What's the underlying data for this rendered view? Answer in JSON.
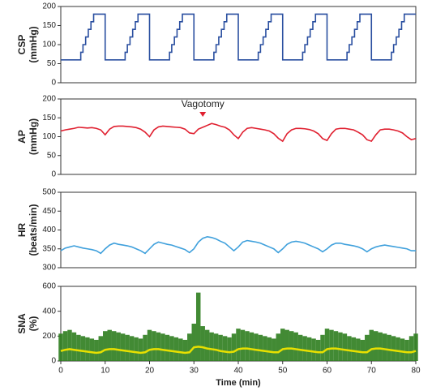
{
  "chart_data": [
    {
      "type": "line",
      "ylabel": [
        "CSP",
        "(mmHg)"
      ],
      "xlim": [
        0,
        80
      ],
      "ylim": [
        0,
        200
      ],
      "yticks": [
        0,
        50,
        100,
        150,
        200
      ],
      "x": [
        0,
        4.5,
        4.5,
        5,
        5,
        5.6,
        5.6,
        6.2,
        6.2,
        6.8,
        6.8,
        7.4,
        7.4,
        10,
        10,
        14.5,
        14.5,
        15,
        15,
        15.6,
        15.6,
        16.2,
        16.2,
        16.8,
        16.8,
        17.4,
        17.4,
        20,
        20,
        24.5,
        24.5,
        25,
        25,
        25.6,
        25.6,
        26.2,
        26.2,
        26.8,
        26.8,
        27.4,
        27.4,
        30,
        30,
        34.5,
        34.5,
        35,
        35,
        35.6,
        35.6,
        36.2,
        36.2,
        36.8,
        36.8,
        37.4,
        37.4,
        40,
        40,
        44.5,
        44.5,
        45,
        45,
        45.6,
        45.6,
        46.2,
        46.2,
        46.8,
        46.8,
        47.4,
        47.4,
        50,
        50,
        54.5,
        54.5,
        55,
        55,
        55.6,
        55.6,
        56.2,
        56.2,
        56.8,
        56.8,
        57.4,
        57.4,
        60,
        60,
        64.5,
        64.5,
        65,
        65,
        65.6,
        65.6,
        66.2,
        66.2,
        66.8,
        66.8,
        67.4,
        67.4,
        70,
        70,
        74.5,
        74.5,
        75,
        75,
        75.6,
        75.6,
        76.2,
        76.2,
        76.8,
        76.8,
        77.4,
        77.4,
        80
      ],
      "series": [
        {
          "color": "#2a4fa0",
          "values": [
            60,
            60,
            80,
            80,
            100,
            100,
            120,
            120,
            140,
            140,
            160,
            160,
            180,
            180,
            60,
            60,
            80,
            80,
            100,
            100,
            120,
            120,
            140,
            140,
            160,
            160,
            180,
            180,
            60,
            60,
            80,
            80,
            100,
            100,
            120,
            120,
            140,
            140,
            160,
            160,
            180,
            180,
            60,
            60,
            80,
            80,
            100,
            100,
            120,
            120,
            140,
            140,
            160,
            160,
            180,
            180,
            60,
            60,
            80,
            80,
            100,
            100,
            120,
            120,
            140,
            140,
            160,
            160,
            180,
            180,
            60,
            60,
            80,
            80,
            100,
            100,
            120,
            120,
            140,
            140,
            160,
            160,
            180,
            180,
            60,
            60,
            80,
            80,
            100,
            100,
            120,
            120,
            140,
            140,
            160,
            160,
            180,
            180,
            60,
            60,
            80,
            80,
            100,
            100,
            120,
            120,
            140,
            140,
            160,
            160,
            180,
            180
          ]
        }
      ]
    },
    {
      "type": "line",
      "ylabel": [
        "AP",
        "(mmHg)"
      ],
      "xlim": [
        0,
        80
      ],
      "ylim": [
        0,
        200
      ],
      "yticks": [
        0,
        50,
        100,
        150,
        200
      ],
      "annotation": {
        "text": "Vagotomy",
        "x": 32,
        "color": "#e02030"
      },
      "x": [
        0,
        1,
        2,
        3,
        4,
        5,
        6,
        7,
        8,
        9,
        10,
        11,
        12,
        13,
        14,
        15,
        16,
        17,
        18,
        19,
        20,
        21,
        22,
        23,
        24,
        25,
        26,
        27,
        28,
        29,
        30,
        31,
        32,
        33,
        34,
        35,
        36,
        37,
        38,
        39,
        40,
        41,
        42,
        43,
        44,
        45,
        46,
        47,
        48,
        49,
        50,
        51,
        52,
        53,
        54,
        55,
        56,
        57,
        58,
        59,
        60,
        61,
        62,
        63,
        64,
        65,
        66,
        67,
        68,
        69,
        70,
        71,
        72,
        73,
        74,
        75,
        76,
        77,
        78,
        79,
        80
      ],
      "series": [
        {
          "color": "#e02030",
          "values": [
            115,
            118,
            120,
            122,
            125,
            124,
            123,
            124,
            122,
            118,
            105,
            120,
            127,
            128,
            128,
            127,
            126,
            124,
            120,
            112,
            100,
            118,
            126,
            128,
            127,
            126,
            125,
            124,
            120,
            110,
            108,
            120,
            125,
            130,
            135,
            132,
            128,
            125,
            118,
            105,
            95,
            112,
            122,
            124,
            122,
            120,
            118,
            115,
            108,
            96,
            88,
            108,
            118,
            122,
            122,
            121,
            119,
            115,
            108,
            95,
            90,
            108,
            120,
            122,
            122,
            120,
            118,
            112,
            105,
            92,
            88,
            105,
            118,
            120,
            120,
            118,
            115,
            110,
            100,
            92,
            95
          ]
        }
      ]
    },
    {
      "type": "line",
      "ylabel": [
        "HR",
        "(beats/min)"
      ],
      "xlim": [
        0,
        80
      ],
      "ylim": [
        300,
        500
      ],
      "yticks": [
        300,
        350,
        400,
        450,
        500
      ],
      "x": [
        0,
        1,
        2,
        3,
        4,
        5,
        6,
        7,
        8,
        9,
        10,
        11,
        12,
        13,
        14,
        15,
        16,
        17,
        18,
        19,
        20,
        21,
        22,
        23,
        24,
        25,
        26,
        27,
        28,
        29,
        30,
        31,
        32,
        33,
        34,
        35,
        36,
        37,
        38,
        39,
        40,
        41,
        42,
        43,
        44,
        45,
        46,
        47,
        48,
        49,
        50,
        51,
        52,
        53,
        54,
        55,
        56,
        57,
        58,
        59,
        60,
        61,
        62,
        63,
        64,
        65,
        66,
        67,
        68,
        69,
        70,
        71,
        72,
        73,
        74,
        75,
        76,
        77,
        78,
        79,
        80
      ],
      "series": [
        {
          "color": "#3fa0dc",
          "values": [
            345,
            352,
            355,
            358,
            355,
            352,
            350,
            348,
            345,
            338,
            350,
            360,
            365,
            362,
            360,
            358,
            355,
            350,
            345,
            338,
            350,
            362,
            368,
            365,
            362,
            360,
            356,
            352,
            348,
            340,
            350,
            368,
            378,
            382,
            380,
            376,
            370,
            365,
            355,
            345,
            355,
            368,
            372,
            370,
            368,
            365,
            360,
            355,
            350,
            340,
            350,
            362,
            368,
            370,
            368,
            365,
            360,
            355,
            350,
            342,
            350,
            360,
            365,
            365,
            362,
            360,
            358,
            355,
            350,
            342,
            350,
            355,
            358,
            360,
            358,
            356,
            354,
            352,
            350,
            345,
            345
          ]
        }
      ]
    },
    {
      "type": "line",
      "ylabel": [
        "SNA",
        "(%)"
      ],
      "xlabel": "Time (min)",
      "xlim": [
        0,
        80
      ],
      "xticks": [
        0,
        10,
        20,
        30,
        40,
        50,
        60,
        70,
        80
      ],
      "ylim": [
        0,
        600
      ],
      "yticks": [
        0,
        200,
        400,
        600
      ],
      "x": [
        0,
        1,
        2,
        3,
        4,
        5,
        6,
        7,
        8,
        9,
        10,
        11,
        12,
        13,
        14,
        15,
        16,
        17,
        18,
        19,
        20,
        21,
        22,
        23,
        24,
        25,
        26,
        27,
        28,
        29,
        30,
        31,
        32,
        33,
        34,
        35,
        36,
        37,
        38,
        39,
        40,
        41,
        42,
        43,
        44,
        45,
        46,
        47,
        48,
        49,
        50,
        51,
        52,
        53,
        54,
        55,
        56,
        57,
        58,
        59,
        60,
        61,
        62,
        63,
        64,
        65,
        66,
        67,
        68,
        69,
        70,
        71,
        72,
        73,
        74,
        75,
        76,
        77,
        78,
        79,
        80
      ],
      "series": [
        {
          "type": "area",
          "color": "#2e7d1e",
          "values": [
            220,
            240,
            250,
            230,
            210,
            200,
            190,
            180,
            170,
            200,
            240,
            250,
            240,
            230,
            220,
            210,
            200,
            190,
            180,
            210,
            250,
            240,
            230,
            220,
            210,
            200,
            190,
            180,
            170,
            220,
            300,
            550,
            280,
            250,
            230,
            220,
            210,
            200,
            190,
            220,
            260,
            250,
            240,
            230,
            220,
            210,
            200,
            190,
            180,
            220,
            260,
            250,
            240,
            230,
            210,
            200,
            190,
            180,
            170,
            210,
            260,
            250,
            240,
            230,
            220,
            200,
            190,
            180,
            170,
            210,
            250,
            240,
            230,
            220,
            210,
            200,
            190,
            180,
            170,
            200,
            220
          ]
        },
        {
          "color": "#e8e000",
          "values": [
            80,
            90,
            95,
            90,
            85,
            80,
            75,
            70,
            65,
            70,
            90,
            95,
            95,
            90,
            85,
            80,
            75,
            70,
            65,
            70,
            90,
            95,
            95,
            90,
            85,
            80,
            75,
            70,
            65,
            70,
            110,
            115,
            110,
            100,
            95,
            90,
            80,
            75,
            70,
            75,
            95,
            100,
            100,
            95,
            90,
            85,
            80,
            75,
            70,
            70,
            95,
            100,
            100,
            95,
            90,
            85,
            80,
            75,
            70,
            70,
            95,
            100,
            100,
            95,
            90,
            85,
            80,
            75,
            70,
            70,
            95,
            100,
            100,
            95,
            90,
            85,
            80,
            75,
            70,
            70,
            80
          ]
        }
      ]
    }
  ]
}
